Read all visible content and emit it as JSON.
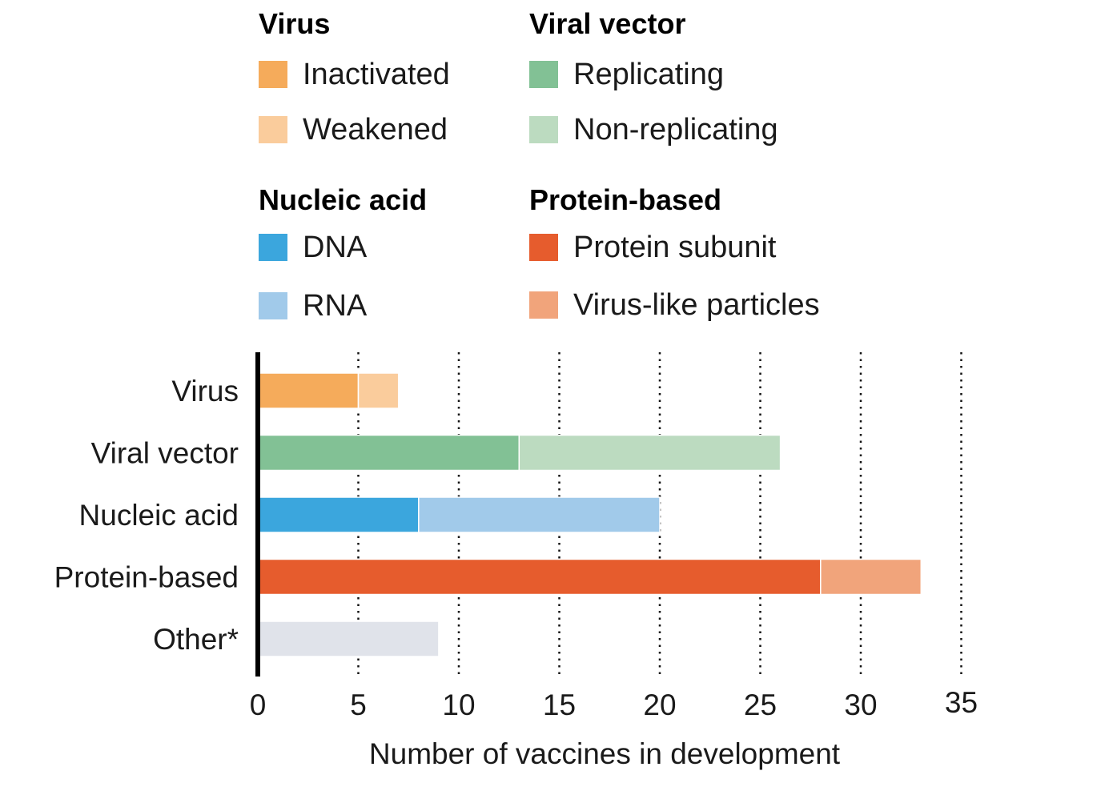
{
  "legend": {
    "groups": [
      {
        "title": "Virus",
        "items": [
          {
            "label": "Inactivated",
            "color": "#F5AB5B"
          },
          {
            "label": "Weakened",
            "color": "#FACC9C"
          }
        ]
      },
      {
        "title": "Viral vector",
        "items": [
          {
            "label": "Replicating",
            "color": "#82C195"
          },
          {
            "label": "Non-replicating",
            "color": "#BCDBC0"
          }
        ]
      },
      {
        "title": "Nucleic acid",
        "items": [
          {
            "label": "DNA",
            "color": "#3BA6DD"
          },
          {
            "label": "RNA",
            "color": "#A1CAEA"
          }
        ]
      },
      {
        "title": "Protein-based",
        "items": [
          {
            "label": "Protein subunit",
            "color": "#E65C2D"
          },
          {
            "label": "Virus-like particles",
            "color": "#F1A47B"
          }
        ]
      }
    ]
  },
  "chart_data": {
    "type": "bar",
    "orientation": "horizontal",
    "stacked": true,
    "xlabel": "Number of vaccines in development",
    "xlim": [
      0,
      35
    ],
    "xticks": [
      0,
      5,
      10,
      15,
      20,
      25,
      30,
      35
    ],
    "grid": "vertical dotted",
    "categories": [
      "Virus",
      "Viral vector",
      "Nucleic acid",
      "Protein-based",
      "Other*"
    ],
    "bars": [
      {
        "category": "Virus",
        "segments": [
          {
            "label": "Inactivated",
            "value": 5,
            "color": "#F5AB5B"
          },
          {
            "label": "Weakened",
            "value": 2,
            "color": "#FACC9C"
          }
        ]
      },
      {
        "category": "Viral vector",
        "segments": [
          {
            "label": "Replicating",
            "value": 13,
            "color": "#82C195"
          },
          {
            "label": "Non-replicating",
            "value": 13,
            "color": "#BCDBC0"
          }
        ]
      },
      {
        "category": "Nucleic acid",
        "segments": [
          {
            "label": "DNA",
            "value": 8,
            "color": "#3BA6DD"
          },
          {
            "label": "RNA",
            "value": 12,
            "color": "#A1CAEA"
          }
        ]
      },
      {
        "category": "Protein-based",
        "segments": [
          {
            "label": "Protein subunit",
            "value": 28,
            "color": "#E65C2D"
          },
          {
            "label": "Virus-like particles",
            "value": 5,
            "color": "#F1A47B"
          }
        ]
      },
      {
        "category": "Other*",
        "segments": [
          {
            "label": "Other",
            "value": 9,
            "color": "#E0E3EA"
          }
        ]
      }
    ]
  }
}
